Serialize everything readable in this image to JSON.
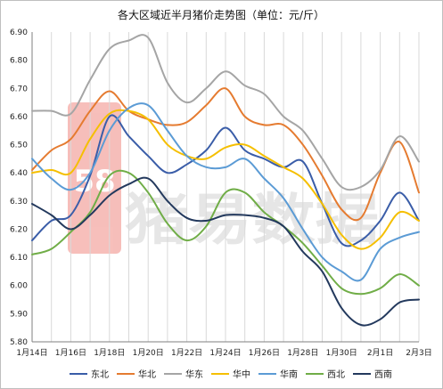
{
  "chart_data": {
    "type": "line",
    "title": "各大区域近半月猪价走势图（单位：元/斤）",
    "xlabel": "",
    "ylabel": "",
    "x": [
      "1月14日",
      "1月15日",
      "1月16日",
      "1月17日",
      "1月18日",
      "1月19日",
      "1月20日",
      "1月21日",
      "1月22日",
      "1月23日",
      "1月24日",
      "1月25日",
      "1月26日",
      "1月27日",
      "1月28日",
      "1月29日",
      "1月30日",
      "1月31日",
      "2月1日",
      "2月2日",
      "2月3日"
    ],
    "x_tick_labels": [
      "1月14日",
      "1月16日",
      "1月18日",
      "1月20日",
      "1月22日",
      "1月24日",
      "1月26日",
      "1月28日",
      "1月30日",
      "2月1日",
      "2月3日"
    ],
    "ylim": [
      5.8,
      6.9
    ],
    "y_ticks": [
      5.8,
      5.9,
      6.0,
      6.1,
      6.2,
      6.3,
      6.4,
      6.5,
      6.6,
      6.7,
      6.8,
      6.9
    ],
    "grid": {
      "vertical": true,
      "horizontal": false
    },
    "legend_position": "bottom",
    "series": [
      {
        "name": "东北",
        "color": "#3a5da8",
        "values": [
          6.16,
          6.23,
          6.25,
          6.39,
          6.6,
          6.53,
          6.46,
          6.4,
          6.43,
          6.48,
          6.56,
          6.48,
          6.45,
          6.42,
          6.44,
          6.29,
          6.15,
          6.16,
          6.23,
          6.33,
          6.23
        ]
      },
      {
        "name": "华北",
        "color": "#e57b30",
        "values": [
          6.41,
          6.48,
          6.52,
          6.62,
          6.69,
          6.62,
          6.59,
          6.57,
          6.58,
          6.64,
          6.7,
          6.6,
          6.57,
          6.57,
          6.5,
          6.39,
          6.27,
          6.24,
          6.4,
          6.51,
          6.33
        ]
      },
      {
        "name": "华东",
        "color": "#a5a5a5",
        "values": [
          6.62,
          6.62,
          6.61,
          6.73,
          6.84,
          6.87,
          6.88,
          6.72,
          6.65,
          6.7,
          6.76,
          6.71,
          6.68,
          6.6,
          6.55,
          6.45,
          6.35,
          6.35,
          6.41,
          6.53,
          6.44
        ]
      },
      {
        "name": "华中",
        "color": "#f5bf00",
        "values": [
          6.4,
          6.41,
          6.4,
          6.52,
          6.61,
          6.62,
          6.59,
          6.5,
          6.46,
          6.45,
          6.49,
          6.5,
          6.46,
          6.42,
          6.38,
          6.29,
          6.18,
          6.13,
          6.17,
          6.26,
          6.23
        ]
      },
      {
        "name": "华南",
        "color": "#5b9bd5",
        "values": [
          6.45,
          6.38,
          6.34,
          6.4,
          6.55,
          6.63,
          6.64,
          6.55,
          6.46,
          6.42,
          6.42,
          6.45,
          6.38,
          6.31,
          6.2,
          6.1,
          6.05,
          6.02,
          6.13,
          6.17,
          6.19
        ]
      },
      {
        "name": "西北",
        "color": "#70ad47",
        "values": [
          6.11,
          6.13,
          6.19,
          6.26,
          6.39,
          6.4,
          6.33,
          6.22,
          6.16,
          6.21,
          6.33,
          6.33,
          6.26,
          6.21,
          6.15,
          6.07,
          5.99,
          5.97,
          5.99,
          6.04,
          6.0
        ]
      },
      {
        "name": "西南",
        "color": "#23395d",
        "values": [
          6.29,
          6.25,
          6.2,
          6.25,
          6.32,
          6.36,
          6.38,
          6.3,
          6.24,
          6.23,
          6.25,
          6.25,
          6.24,
          6.21,
          6.12,
          6.05,
          5.92,
          5.86,
          5.88,
          5.94,
          5.95
        ]
      }
    ]
  },
  "watermark": {
    "text": "猪易数据",
    "badge_color": "#f4a9a4",
    "badge_glyph": "58"
  }
}
